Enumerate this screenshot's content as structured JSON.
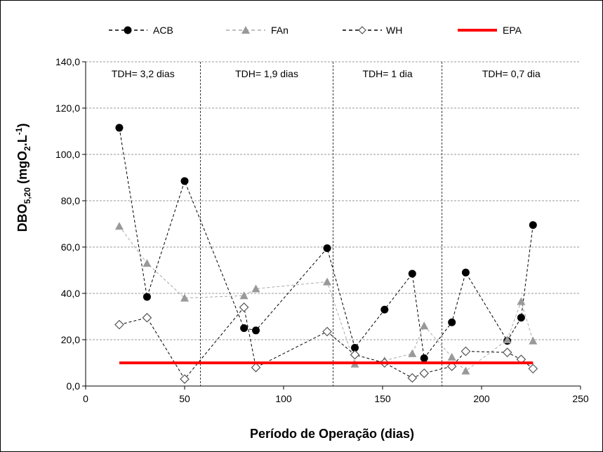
{
  "chart_data": {
    "type": "line",
    "xlabel": "Período de Operação (dias)",
    "ylabel": {
      "main": "DBO",
      "sub": "5,20",
      "rest": " (mgO",
      "sub2": "2",
      "rest2": ".L",
      "sup": "-1",
      "end": ")"
    },
    "xlim": [
      0,
      250
    ],
    "ylim": [
      0,
      140
    ],
    "x_ticks": [
      0,
      50,
      100,
      150,
      200,
      250
    ],
    "y_ticks": [
      0,
      20,
      40,
      60,
      80,
      100,
      120,
      140
    ],
    "y_tick_labels": [
      "0,0",
      "20,0",
      "40,0",
      "60,0",
      "80,0",
      "100,0",
      "120,0",
      "140,0"
    ],
    "grid": "horizontal dashed",
    "legend_position": "top",
    "phase_dividers": [
      58,
      125,
      180
    ],
    "annotations": [
      {
        "text": "TDH= 3,2 dias",
        "x": 29
      },
      {
        "text": "TDH= 1,9 dias",
        "x": 91.5
      },
      {
        "text": "TDH= 1 dia",
        "x": 152.5
      },
      {
        "text": "TDH= 0,7 dia",
        "x": 215
      }
    ],
    "series": [
      {
        "name": "ACB",
        "color": "#000000",
        "marker": "circle",
        "x": [
          17,
          31,
          50,
          80,
          86,
          122,
          136,
          151,
          165,
          171,
          185,
          192,
          213,
          220,
          226
        ],
        "y": [
          111.5,
          38.5,
          88.5,
          25,
          24,
          59.5,
          16.5,
          33,
          48.5,
          12,
          27.5,
          49,
          19.5,
          29.5,
          69.5
        ]
      },
      {
        "name": "FAn",
        "color": "#999999",
        "marker": "triangle",
        "x": [
          17,
          31,
          50,
          80,
          86,
          122,
          136,
          151,
          165,
          171,
          185,
          192,
          213,
          220,
          226
        ],
        "y": [
          69,
          53,
          38,
          39,
          42,
          45,
          9.5,
          11,
          14,
          26,
          12.5,
          6.5,
          20,
          36.5,
          19.5
        ]
      },
      {
        "name": "WH",
        "color": "#000000",
        "marker": "diamond",
        "x": [
          17,
          31,
          50,
          80,
          86,
          122,
          136,
          151,
          165,
          171,
          185,
          192,
          213,
          220,
          226
        ],
        "y": [
          26.5,
          29.5,
          3,
          34,
          8,
          23.5,
          13.5,
          10,
          3.5,
          5.5,
          8.5,
          15,
          14.5,
          11.5,
          7.5
        ]
      },
      {
        "name": "EPA",
        "color": "#ff0000",
        "marker": "none",
        "x": [
          17,
          226
        ],
        "y": [
          10,
          10
        ]
      }
    ]
  }
}
